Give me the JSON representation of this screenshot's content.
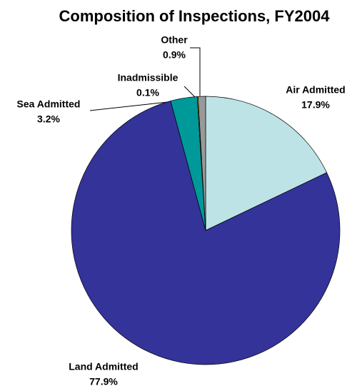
{
  "chart_data": {
    "type": "pie",
    "title": "Composition of Inspections, FY2004",
    "categories": [
      "Air Admitted",
      "Land Admitted",
      "Sea Admitted",
      "Inadmissible",
      "Other"
    ],
    "values": [
      17.9,
      77.9,
      3.2,
      0.1,
      0.9
    ],
    "value_labels": [
      "17.9%",
      "77.9%",
      "3.2%",
      "0.1%",
      "0.9%"
    ],
    "colors": [
      "#bde3e6",
      "#333399",
      "#009999",
      "#cccc00",
      "#999999"
    ]
  }
}
